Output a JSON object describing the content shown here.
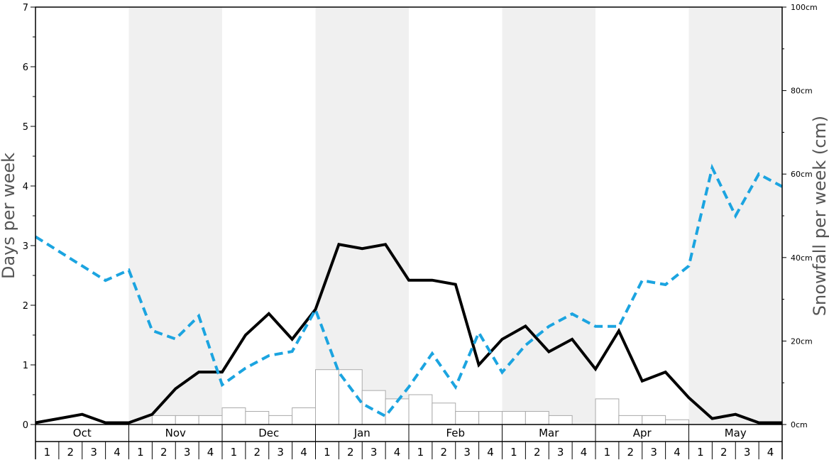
{
  "chart_data": {
    "type": "bar",
    "months": [
      "Oct",
      "Nov",
      "Dec",
      "Jan",
      "Feb",
      "Mar",
      "Apr",
      "May"
    ],
    "week_labels": [
      "1",
      "2",
      "3",
      "4"
    ],
    "ylabel": "Days per week",
    "ylabel_right": "Snowfall per week (cm)",
    "ylim": [
      0,
      7
    ],
    "ylim_right": [
      0,
      100
    ],
    "yticks": [
      "0",
      "1",
      "2",
      "3",
      "4",
      "5",
      "6",
      "7"
    ],
    "yticks_right": [
      "0cm",
      "20cm",
      "40cm",
      "60cm",
      "80cm",
      "100cm"
    ],
    "shaded_months": [
      "Nov",
      "Jan",
      "Mar",
      "May"
    ],
    "grid": false,
    "series": [
      {
        "kind": "bar",
        "axis": "left",
        "color": "#ffffff",
        "values": [
          0,
          0,
          0,
          0,
          0,
          0.15,
          0.15,
          0.15,
          0.28,
          0.22,
          0.15,
          0.28,
          0.92,
          0.92,
          0.57,
          0.43,
          0.5,
          0.36,
          0.22,
          0.22,
          0.22,
          0.22,
          0.15,
          0,
          0.43,
          0.15,
          0.15,
          0.08,
          0,
          0,
          0,
          0
        ]
      },
      {
        "kind": "line",
        "axis": "left",
        "color": "#000000",
        "values": [
          0.03,
          0.1,
          0.17,
          0.03,
          0.03,
          0.17,
          0.6,
          0.88,
          0.88,
          1.5,
          1.86,
          1.43,
          1.93,
          3.02,
          2.95,
          3.02,
          2.42,
          2.42,
          2.35,
          1.0,
          1.43,
          1.65,
          1.22,
          1.43,
          0.93,
          1.57,
          0.73,
          0.88,
          0.45,
          0.1,
          0.17,
          0.03,
          0.03
        ]
      },
      {
        "kind": "line",
        "axis": "right",
        "color": "#1ba4e0",
        "values": [
          45,
          41.5,
          38,
          34.5,
          37,
          22.5,
          20.5,
          26,
          9.5,
          13.5,
          16.5,
          17.5,
          27.5,
          12.5,
          5,
          2,
          9,
          17,
          9,
          22,
          12.5,
          19,
          23.5,
          26.5,
          23.5,
          23.5,
          34.5,
          33.5,
          38,
          61.5,
          50,
          60,
          57
        ]
      }
    ]
  }
}
